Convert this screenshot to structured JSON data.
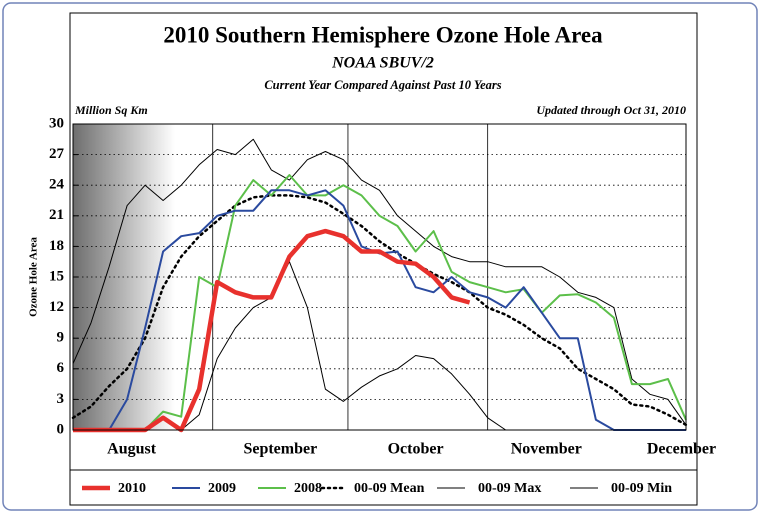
{
  "chart_data": {
    "type": "line",
    "title": "2010 Southern Hemisphere Ozone Hole Area",
    "subtitle": "NOAA SBUV/2",
    "subtitle2": "Current Year Compared Against Past 10 Years",
    "units_label": "Million Sq Km",
    "updated": "Updated through Oct 31, 2010",
    "ylabel": "Ozone Hole Area",
    "x": [
      0,
      4,
      8,
      12,
      16,
      20,
      24,
      28,
      32,
      36,
      40,
      44,
      48,
      52,
      56,
      60,
      64,
      68,
      72,
      76,
      80,
      84,
      88,
      92,
      96,
      100,
      104,
      108,
      112,
      116,
      120,
      124,
      128,
      132,
      136
    ],
    "xlim": [
      0,
      136
    ],
    "xgrid": [
      31,
      61,
      92
    ],
    "xticks": [
      {
        "value": 13,
        "label": "August"
      },
      {
        "value": 46,
        "label": "September"
      },
      {
        "value": 76,
        "label": "October"
      },
      {
        "value": 105,
        "label": "November"
      },
      {
        "value": 135,
        "label": "December"
      }
    ],
    "ylim": [
      0,
      30
    ],
    "yticks": [
      0,
      3,
      6,
      9,
      12,
      15,
      18,
      21,
      24,
      27,
      30
    ],
    "grid": true,
    "series": [
      {
        "name": "00-09 Min",
        "color": "#000000",
        "width": 1,
        "dash": "solid",
        "values": [
          0,
          0,
          0,
          0,
          0,
          0,
          0,
          1.5,
          7,
          10,
          12,
          13,
          16.5,
          12,
          4,
          2.8,
          4.2,
          5.3,
          6,
          7.3,
          7,
          5.5,
          3.5,
          1.2,
          0,
          0,
          0,
          0,
          0,
          0,
          0,
          0,
          0,
          0,
          0
        ]
      },
      {
        "name": "00-09 Max",
        "color": "#000000",
        "width": 1,
        "dash": "solid",
        "values": [
          6.5,
          10.5,
          16,
          22,
          24,
          22.5,
          24,
          26,
          27.5,
          27,
          28.5,
          25.5,
          24.5,
          26.5,
          27.3,
          26.5,
          24.5,
          23.5,
          21,
          19.5,
          18,
          17,
          16.5,
          16.5,
          16,
          16,
          16,
          15,
          13.5,
          13,
          12,
          5,
          3.5,
          3,
          0.5
        ]
      },
      {
        "name": "00-09 Mean",
        "color": "#000000",
        "width": 2.5,
        "dash": "dotted",
        "values": [
          1.2,
          2.3,
          4.3,
          6,
          9,
          14,
          17,
          19,
          20.5,
          22,
          22.8,
          23,
          23,
          22.8,
          22.3,
          21.2,
          20,
          18.5,
          17.3,
          16.3,
          15.3,
          14.5,
          13.5,
          12,
          11.3,
          10.3,
          9,
          8,
          6,
          5,
          4,
          2.5,
          2.3,
          1.5,
          0.5
        ]
      },
      {
        "name": "2008",
        "color": "#5cbf4a",
        "width": 2,
        "dash": "solid",
        "values": [
          0,
          0,
          0,
          0,
          0,
          1.8,
          1.3,
          15,
          14,
          22,
          24.5,
          23,
          25,
          23,
          23,
          24,
          23,
          21,
          20,
          17.5,
          19.5,
          15.5,
          14.5,
          14,
          13.5,
          13.8,
          11.5,
          13.2,
          13.3,
          12.5,
          11,
          4.5,
          4.5,
          5,
          1
        ]
      },
      {
        "name": "2009",
        "color": "#2a4a9f",
        "width": 2,
        "dash": "solid",
        "values": [
          0,
          0,
          0,
          3,
          10,
          17.5,
          19,
          19.3,
          21,
          21.5,
          21.5,
          23.5,
          23.5,
          23,
          23.5,
          22,
          18,
          17.3,
          17.5,
          14,
          13.5,
          15,
          13.5,
          13,
          12,
          14,
          11.5,
          9,
          9,
          1,
          0,
          0,
          0,
          0,
          0
        ]
      },
      {
        "name": "2010",
        "color": "#e8312d",
        "width": 4.5,
        "dash": "solid",
        "values": [
          0,
          0,
          0,
          0,
          0,
          1.2,
          0,
          4,
          14.5,
          13.5,
          13,
          13,
          17,
          19,
          19.5,
          19,
          17.5,
          17.5,
          16.5,
          16.3,
          15,
          13,
          12.5,
          null,
          null,
          null,
          null,
          null,
          null,
          null,
          null,
          null,
          null,
          null,
          null
        ]
      }
    ],
    "legend_order": [
      5,
      4,
      3,
      2,
      1,
      0
    ]
  }
}
